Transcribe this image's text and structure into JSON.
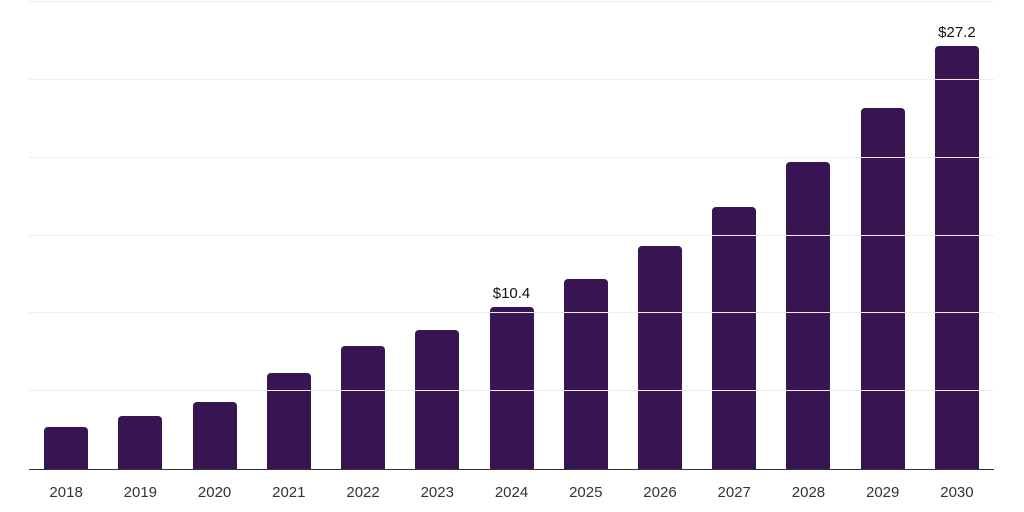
{
  "chart_data": {
    "type": "bar",
    "title": "",
    "xlabel": "",
    "ylabel": "",
    "categories": [
      "2018",
      "2019",
      "2020",
      "2021",
      "2022",
      "2023",
      "2024",
      "2025",
      "2026",
      "2027",
      "2028",
      "2029",
      "2030"
    ],
    "values": [
      2.7,
      3.4,
      4.3,
      6.2,
      7.9,
      8.9,
      10.4,
      12.2,
      14.3,
      16.8,
      19.7,
      23.2,
      27.2
    ],
    "data_labels": {
      "2024": "$10.4",
      "2030": "$27.2"
    },
    "ylim": [
      0,
      30
    ],
    "gridline_step": 5,
    "grid": true,
    "legend": false,
    "colors": {
      "bar": "#371452",
      "gridline": "#ededed",
      "axis_line": "#333333",
      "tick_label": "#333333",
      "data_label": "#111111",
      "background": "#ffffff"
    }
  }
}
